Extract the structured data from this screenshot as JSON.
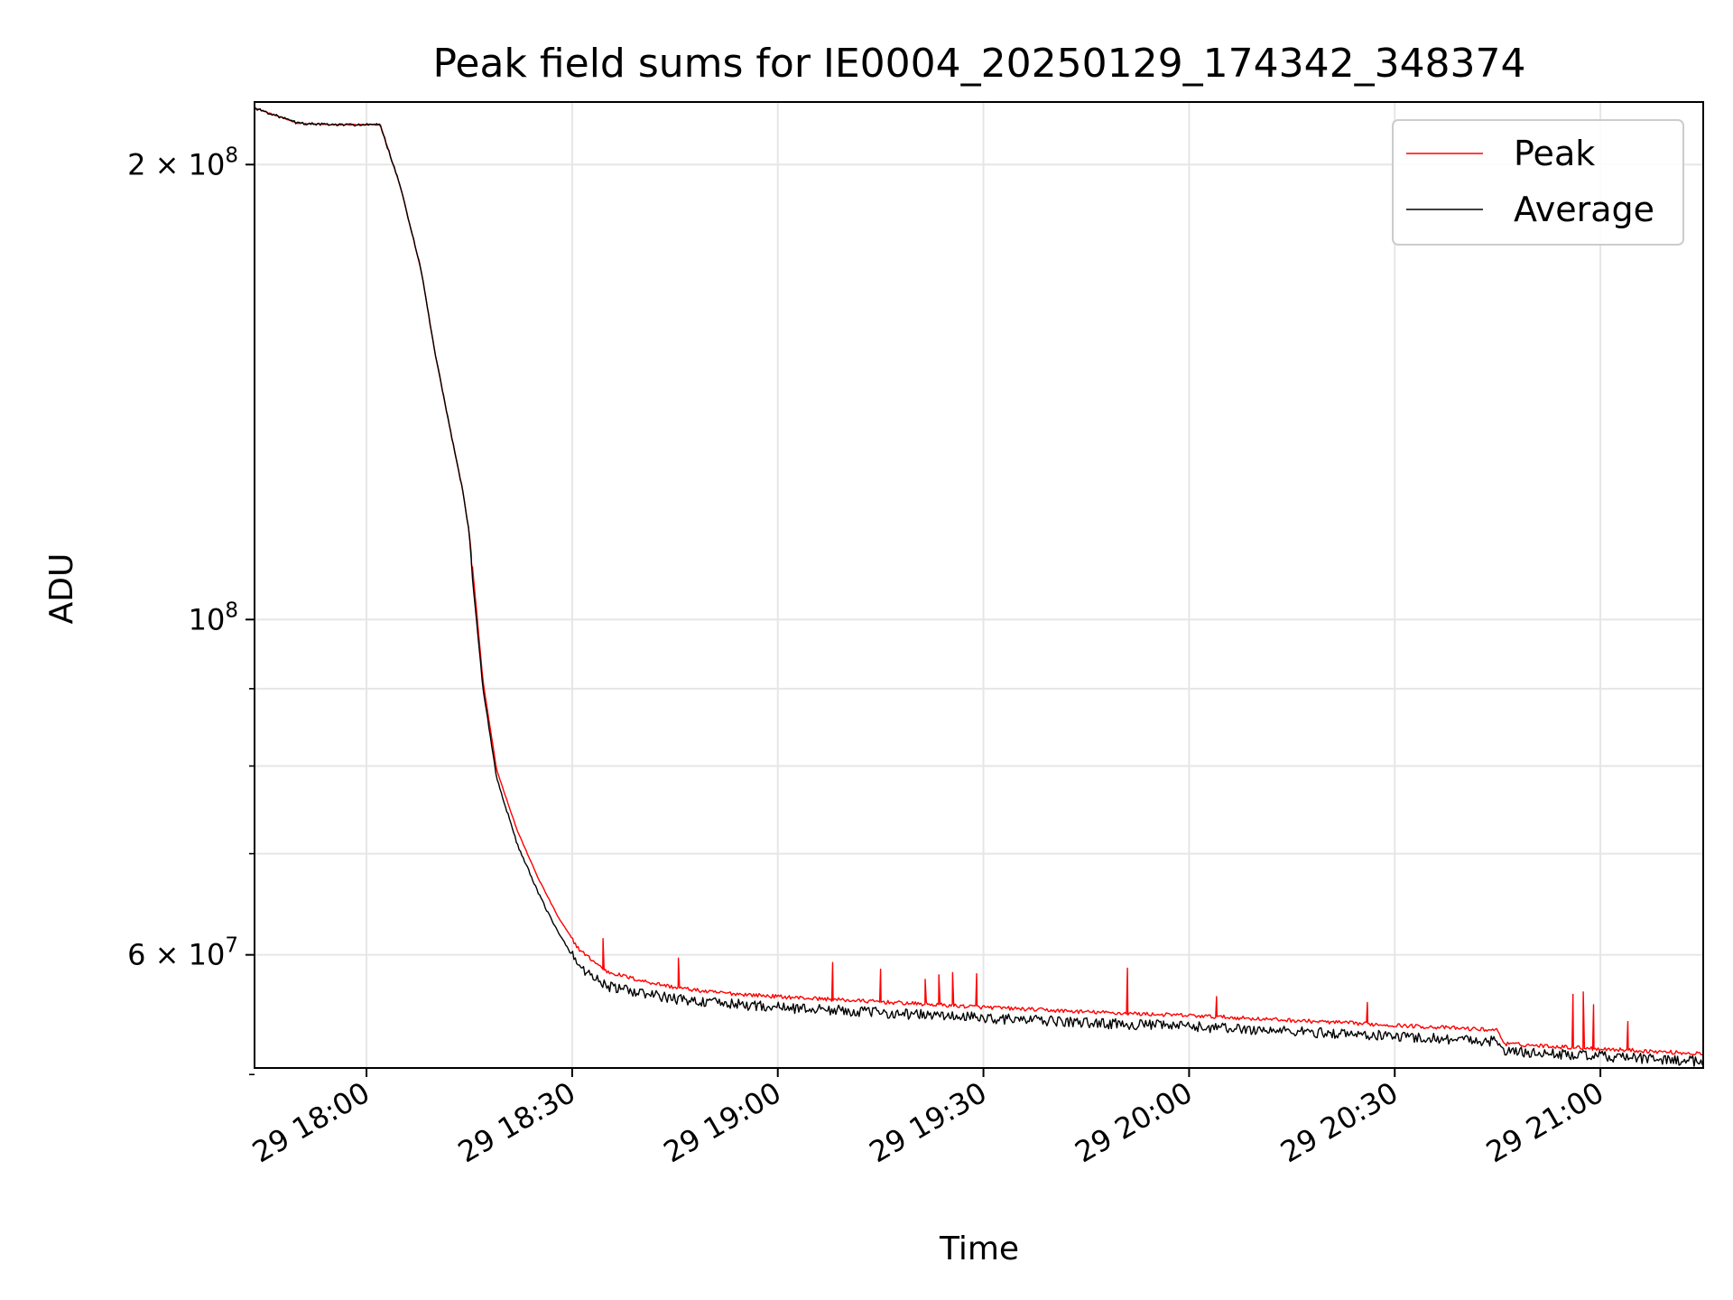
{
  "chart_data": {
    "type": "line",
    "title": "Peak field sums for IE0004_20250129_174342_348374",
    "xlabel": "Time",
    "ylabel": "ADU",
    "yscale": "log",
    "xlim": [
      "2025-01-29 17:43:40",
      "2025-01-29 21:15:00"
    ],
    "ylim": [
      50500000,
      220000000
    ],
    "grid": true,
    "legend_position": "top-right",
    "x_ticks": [
      {
        "t": "2025-01-29 18:00:00",
        "label": "29 18:00"
      },
      {
        "t": "2025-01-29 18:30:00",
        "label": "29 18:30"
      },
      {
        "t": "2025-01-29 19:00:00",
        "label": "29 19:00"
      },
      {
        "t": "2025-01-29 19:30:00",
        "label": "29 19:30"
      },
      {
        "t": "2025-01-29 20:00:00",
        "label": "29 20:00"
      },
      {
        "t": "2025-01-29 20:30:00",
        "label": "29 20:30"
      },
      {
        "t": "2025-01-29 21:00:00",
        "label": "29 21:00"
      }
    ],
    "y_major_ticks": [
      {
        "value": 200000000,
        "mantissa": "2",
        "exponent": "8"
      },
      {
        "value": 100000000,
        "mantissa": "",
        "exponent": "8"
      },
      {
        "value": 60000000,
        "mantissa": "6",
        "exponent": "7"
      }
    ],
    "y_minor_ticks": [
      50000000,
      70000000,
      80000000,
      90000000
    ],
    "series": [
      {
        "name": "Average",
        "color": "#000000",
        "x": [
          "2025-01-29 17:43:40",
          "2025-01-29 17:50:00",
          "2025-01-29 17:55:00",
          "2025-01-29 18:02:00",
          "2025-01-29 18:05:00",
          "2025-01-29 18:08:00",
          "2025-01-29 18:10:00",
          "2025-01-29 18:12:00",
          "2025-01-29 18:14:00",
          "2025-01-29 18:15:00",
          "2025-01-29 18:15:30",
          "2025-01-29 18:17:00",
          "2025-01-29 18:19:00",
          "2025-01-29 18:22:00",
          "2025-01-29 18:25:00",
          "2025-01-29 18:28:00",
          "2025-01-29 18:31:00",
          "2025-01-29 18:35:00",
          "2025-01-29 18:40:00",
          "2025-01-29 18:45:00",
          "2025-01-29 18:50:00",
          "2025-01-29 19:00:00",
          "2025-01-29 19:10:00",
          "2025-01-29 19:20:00",
          "2025-01-29 19:30:00",
          "2025-01-29 19:45:00",
          "2025-01-29 20:00:00",
          "2025-01-29 20:15:00",
          "2025-01-29 20:30:00",
          "2025-01-29 20:45:00",
          "2025-01-29 20:46:00",
          "2025-01-29 21:00:00",
          "2025-01-29 21:15:00"
        ],
        "y": [
          218000000,
          213000000,
          212500000,
          212500000,
          193000000,
          170000000,
          150000000,
          135000000,
          122000000,
          114000000,
          106000000,
          90000000,
          78500000,
          71000000,
          66000000,
          62000000,
          59000000,
          57200000,
          56600000,
          56100000,
          55800000,
          55400000,
          55100000,
          54800000,
          54500000,
          54100000,
          53800000,
          53400000,
          53000000,
          52600000,
          51800000,
          51400000,
          51000000
        ],
        "noise": 0.008
      },
      {
        "name": "Peak",
        "color": "#ff0000",
        "x": [
          "2025-01-29 17:43:40",
          "2025-01-29 17:50:00",
          "2025-01-29 17:55:00",
          "2025-01-29 18:02:00",
          "2025-01-29 18:05:00",
          "2025-01-29 18:08:00",
          "2025-01-29 18:10:00",
          "2025-01-29 18:12:00",
          "2025-01-29 18:14:00",
          "2025-01-29 18:15:00",
          "2025-01-29 18:15:30",
          "2025-01-29 18:17:00",
          "2025-01-29 18:19:00",
          "2025-01-29 18:22:00",
          "2025-01-29 18:25:00",
          "2025-01-29 18:28:00",
          "2025-01-29 18:31:00",
          "2025-01-29 18:35:00",
          "2025-01-29 18:40:00",
          "2025-01-29 18:45:00",
          "2025-01-29 18:50:00",
          "2025-01-29 19:00:00",
          "2025-01-29 19:10:00",
          "2025-01-29 19:20:00",
          "2025-01-29 19:30:00",
          "2025-01-29 19:45:00",
          "2025-01-29 20:00:00",
          "2025-01-29 20:15:00",
          "2025-01-29 20:30:00",
          "2025-01-29 20:45:00",
          "2025-01-29 20:46:00",
          "2025-01-29 21:00:00",
          "2025-01-29 21:15:00"
        ],
        "y": [
          218000000,
          213000000,
          212500000,
          212500000,
          193000000,
          170000000,
          150000000,
          135000000,
          122000000,
          114000000,
          108000000,
          91000000,
          79500000,
          72500000,
          67500000,
          63500000,
          60500000,
          58500000,
          57700000,
          57100000,
          56700000,
          56300000,
          56000000,
          55700000,
          55400000,
          55000000,
          54700000,
          54300000,
          53900000,
          53500000,
          52400000,
          52000000,
          51600000
        ],
        "noise": 0.003,
        "spikes": [
          {
            "t": "2025-01-29 18:15:20",
            "y": 108500000
          },
          {
            "t": "2025-01-29 18:34:30",
            "y": 61500000
          },
          {
            "t": "2025-01-29 18:45:30",
            "y": 59700000
          },
          {
            "t": "2025-01-29 19:08:00",
            "y": 59300000
          },
          {
            "t": "2025-01-29 19:15:00",
            "y": 58700000
          },
          {
            "t": "2025-01-29 19:21:30",
            "y": 57800000
          },
          {
            "t": "2025-01-29 19:23:30",
            "y": 58200000
          },
          {
            "t": "2025-01-29 19:25:30",
            "y": 58400000
          },
          {
            "t": "2025-01-29 19:29:00",
            "y": 58300000
          },
          {
            "t": "2025-01-29 19:51:00",
            "y": 58800000
          },
          {
            "t": "2025-01-29 20:04:00",
            "y": 56300000
          },
          {
            "t": "2025-01-29 20:26:00",
            "y": 55800000
          },
          {
            "t": "2025-01-29 20:56:00",
            "y": 56500000
          },
          {
            "t": "2025-01-29 20:57:30",
            "y": 56700000
          },
          {
            "t": "2025-01-29 20:59:00",
            "y": 55600000
          },
          {
            "t": "2025-01-29 21:04:00",
            "y": 54200000
          }
        ]
      }
    ],
    "legend": [
      {
        "label": "Peak",
        "color": "#ff0000"
      },
      {
        "label": "Average",
        "color": "#000000"
      }
    ]
  }
}
